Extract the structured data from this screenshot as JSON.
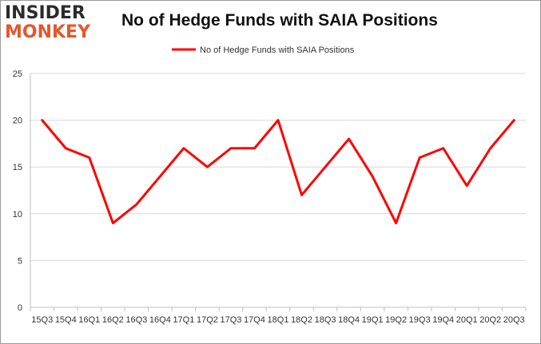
{
  "logo": {
    "line1": "INSIDER",
    "line2": "MONKEY"
  },
  "chart_data": {
    "type": "line",
    "title": "No of Hedge Funds with SAIA Positions",
    "xlabel": "",
    "ylabel": "",
    "categories": [
      "15Q3",
      "15Q4",
      "16Q1",
      "16Q2",
      "16Q3",
      "16Q4",
      "17Q1",
      "17Q2",
      "17Q3",
      "17Q4",
      "18Q1",
      "18Q2",
      "18Q3",
      "18Q4",
      "19Q1",
      "19Q2",
      "19Q3",
      "19Q4",
      "20Q1",
      "20Q2",
      "20Q3"
    ],
    "series": [
      {
        "name": "No of Hedge Funds with SAIA Positions",
        "color": "#ff0000",
        "values": [
          20,
          17,
          16,
          9,
          11,
          14,
          17,
          15,
          17,
          17,
          20,
          12,
          15,
          18,
          14,
          9,
          16,
          17,
          13,
          17,
          20
        ]
      }
    ],
    "ylim": [
      0,
      25
    ],
    "yticks": [
      0,
      5,
      10,
      15,
      20,
      25
    ],
    "grid": true,
    "legend": "top-center"
  }
}
